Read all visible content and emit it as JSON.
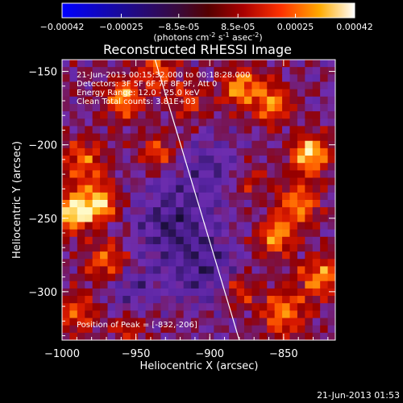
{
  "chart_data": {
    "type": "heatmap",
    "title": "Reconstructed RHESSI Image",
    "xlabel": "Heliocentric X (arcsec)",
    "ylabel": "Heliocentric Y (arcsec)",
    "xlim": [
      -1000,
      -815
    ],
    "ylim": [
      -333,
      -142
    ],
    "xticks": [
      -1000,
      -950,
      -900,
      -850
    ],
    "yticks": [
      -150,
      -200,
      -250,
      -300
    ],
    "colorbar": {
      "range": [
        -0.00042,
        0.00042
      ],
      "ticks": [
        "-0.00042",
        "-0.00025",
        "-8.5e-05",
        "8.5e-05",
        "0.00025",
        "0.00042"
      ],
      "units_label": "(photons cm",
      "units_parts": [
        "(photons cm",
        "-2",
        " s",
        "-1",
        " asec",
        "-2",
        ")"
      ]
    },
    "annotations": {
      "time_range": "21-Jun-2013 00:15:32.000 to 00:18:28.000",
      "detectors": "Detectors: 3F 5F 6F 7F 8F 9F, Att 0",
      "energy": "Energy Range: 12.0 - 25.0 keV",
      "clean": "Clean    Total counts: 3.81E+03",
      "peak": "Position of Peak = [-832,-206]"
    },
    "limb_line": {
      "from": [
        -937,
        -142
      ],
      "to": [
        -880,
        -333
      ]
    },
    "grid_cols": 36,
    "grid_rows": 38,
    "hot_spots": [
      {
        "x": -993,
        "y": -246,
        "amp": 1.0,
        "sigma": 9
      },
      {
        "x": -975,
        "y": -240,
        "amp": 0.9,
        "sigma": 9
      },
      {
        "x": -985,
        "y": -212,
        "amp": 0.6,
        "sigma": 11
      },
      {
        "x": -970,
        "y": -280,
        "amp": 0.6,
        "sigma": 10
      },
      {
        "x": -958,
        "y": -168,
        "amp": 0.8,
        "sigma": 9
      },
      {
        "x": -935,
        "y": -150,
        "amp": 0.6,
        "sigma": 9
      },
      {
        "x": -935,
        "y": -205,
        "amp": 0.55,
        "sigma": 8
      },
      {
        "x": -915,
        "y": -170,
        "amp": 0.45,
        "sigma": 9
      },
      {
        "x": -880,
        "y": -160,
        "amp": 0.75,
        "sigma": 9
      },
      {
        "x": -858,
        "y": -172,
        "amp": 0.7,
        "sigma": 10
      },
      {
        "x": -832,
        "y": -206,
        "amp": 1.0,
        "sigma": 9
      },
      {
        "x": -840,
        "y": -240,
        "amp": 0.7,
        "sigma": 10
      },
      {
        "x": -855,
        "y": -262,
        "amp": 0.8,
        "sigma": 9
      },
      {
        "x": -825,
        "y": -290,
        "amp": 0.75,
        "sigma": 10
      },
      {
        "x": -850,
        "y": -315,
        "amp": 0.7,
        "sigma": 11
      },
      {
        "x": -880,
        "y": -300,
        "amp": 0.45,
        "sigma": 8
      },
      {
        "x": -990,
        "y": -315,
        "amp": 0.55,
        "sigma": 10
      },
      {
        "x": -955,
        "y": -325,
        "amp": 0.4,
        "sigma": 9
      },
      {
        "x": -870,
        "y": -225,
        "amp": 0.35,
        "sigma": 8
      }
    ],
    "cold_spots": [
      {
        "x": -925,
        "y": -250,
        "amp": 0.55,
        "sigma": 18
      },
      {
        "x": -905,
        "y": -285,
        "amp": 0.5,
        "sigma": 16
      },
      {
        "x": -955,
        "y": -300,
        "amp": 0.4,
        "sigma": 12
      },
      {
        "x": -900,
        "y": -215,
        "amp": 0.4,
        "sigma": 12
      }
    ]
  },
  "footer": {
    "timestamp": "21-Jun-2013 01:53"
  }
}
